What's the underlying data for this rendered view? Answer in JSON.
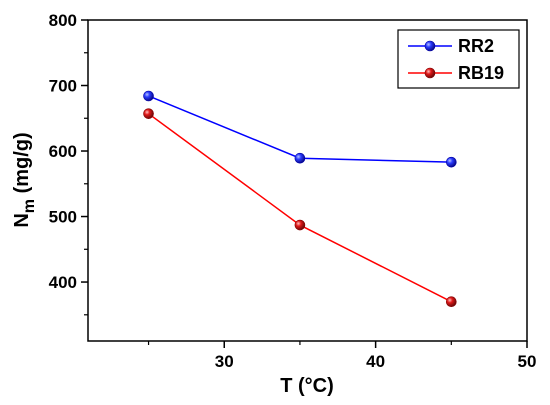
{
  "chart_data": {
    "type": "line",
    "xlabel": "T (°C)",
    "ylabel_main": "N",
    "ylabel_sub": "m",
    "ylabel_unit": " (mg/g)",
    "xlim": [
      21,
      50
    ],
    "ylim": [
      310,
      800
    ],
    "xticks": [
      30,
      40,
      50
    ],
    "yticks": [
      400,
      500,
      600,
      700,
      800
    ],
    "legend_position": "top-right",
    "series": [
      {
        "name": "RR2",
        "color": "#0000ff",
        "marker": "#1f3fff",
        "x": [
          25,
          35,
          45
        ],
        "y": [
          684,
          589,
          583
        ]
      },
      {
        "name": "RB19",
        "color": "#ff0000",
        "marker": "#cc1a1a",
        "x": [
          25,
          35,
          45
        ],
        "y": [
          657,
          487,
          370
        ]
      }
    ]
  }
}
